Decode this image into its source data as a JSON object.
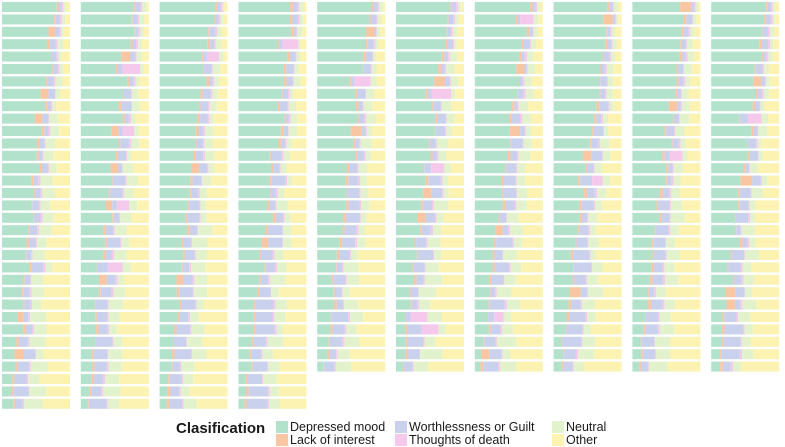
{
  "chart_data": {
    "type": "bar",
    "orientation": "horizontal",
    "stacked": true,
    "normalized": true,
    "panels": 10,
    "rows_per_panel": 33,
    "grid": false,
    "legend": {
      "title": "Clasification",
      "position": "bottom",
      "items": [
        {
          "key": "depressed",
          "label": "Depressed mood",
          "color": "#b2e2cc"
        },
        {
          "key": "worthless",
          "label": "Worthlessness or Guilt",
          "color": "#c9d1ec"
        },
        {
          "key": "neutral",
          "label": "Neutral",
          "color": "#e1f2cc"
        },
        {
          "key": "lack",
          "label": "Lack of interest",
          "color": "#f8c6a3"
        },
        {
          "key": "death",
          "label": "Thoughts of death",
          "color": "#f4c9ec"
        },
        {
          "key": "other",
          "label": "Other",
          "color": "#fcf2b1"
        }
      ]
    },
    "panel_rows": [
      33,
      33,
      33,
      33,
      30,
      30,
      30,
      30,
      30,
      30
    ],
    "series_order": [
      "depressed",
      "lack",
      "worthless",
      "death",
      "neutral",
      "other"
    ],
    "panel_profiles": [
      {
        "depressed": [
          0.8,
          0.15
        ],
        "worthless": [
          0.06,
          0.18
        ],
        "neutral": [
          0.05,
          0.25
        ],
        "other": [
          0.05,
          0.48
        ]
      },
      {
        "depressed": [
          0.84,
          0.12
        ],
        "worthless": [
          0.08,
          0.22
        ],
        "neutral": [
          0.05,
          0.22
        ],
        "other": [
          0.05,
          0.5
        ]
      },
      {
        "depressed": [
          0.82,
          0.12
        ],
        "worthless": [
          0.06,
          0.2
        ],
        "neutral": [
          0.05,
          0.25
        ],
        "other": [
          0.05,
          0.5
        ]
      },
      {
        "depressed": [
          0.86,
          0.1
        ],
        "worthless": [
          0.05,
          0.26
        ],
        "neutral": [
          0.05,
          0.2
        ],
        "other": [
          0.05,
          0.5
        ]
      },
      {
        "depressed": [
          0.84,
          0.12
        ],
        "worthless": [
          0.06,
          0.2
        ],
        "neutral": [
          0.05,
          0.22
        ],
        "other": [
          0.05,
          0.5
        ]
      },
      {
        "depressed": [
          0.82,
          0.12
        ],
        "worthless": [
          0.06,
          0.22
        ],
        "neutral": [
          0.05,
          0.25
        ],
        "other": [
          0.05,
          0.5
        ]
      },
      {
        "depressed": [
          0.8,
          0.1
        ],
        "worthless": [
          0.06,
          0.24
        ],
        "neutral": [
          0.05,
          0.22
        ],
        "other": [
          0.05,
          0.5
        ]
      },
      {
        "depressed": [
          0.88,
          0.1
        ],
        "worthless": [
          0.05,
          0.26
        ],
        "neutral": [
          0.05,
          0.2
        ],
        "other": [
          0.05,
          0.48
        ]
      },
      {
        "depressed": [
          0.82,
          0.12
        ],
        "worthless": [
          0.06,
          0.18
        ],
        "neutral": [
          0.05,
          0.22
        ],
        "other": [
          0.05,
          0.5
        ]
      },
      {
        "depressed": [
          0.84,
          0.12
        ],
        "worthless": [
          0.06,
          0.22
        ],
        "neutral": [
          0.05,
          0.2
        ],
        "other": [
          0.05,
          0.52
        ]
      }
    ]
  }
}
